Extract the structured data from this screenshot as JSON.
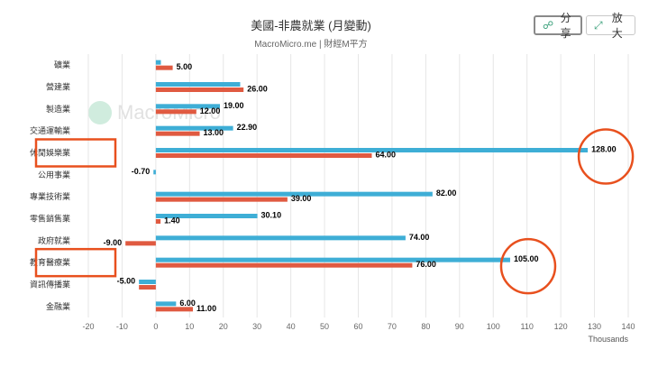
{
  "header": {
    "title": "美國-非農就業 (月變動)",
    "subtitle": "MacroMicro.me | 財經M平方"
  },
  "toolbar": {
    "share_label": "分享",
    "share_icon": "share-icon",
    "zoom_label": "放大",
    "zoom_icon": "expand-icon"
  },
  "watermark": {
    "text": "MacroMicro"
  },
  "chart_data": {
    "type": "bar",
    "orientation": "horizontal",
    "categories": [
      "礦業",
      "營建業",
      "製造業",
      "交通運輸業",
      "休閒娛樂業",
      "公用事業",
      "專業技術業",
      "零售銷售業",
      "政府就業",
      "教育醫療業",
      "資訊傳播業",
      "金融業"
    ],
    "series": [
      {
        "color": "#3eaed6",
        "values": [
          1.5,
          25,
          19.0,
          22.9,
          128.0,
          -0.7,
          82.0,
          30.1,
          74.0,
          105.0,
          -5.0,
          6.0
        ]
      },
      {
        "color": "#e05a41",
        "values": [
          5.0,
          26.0,
          12.0,
          13.0,
          64.0,
          null,
          39.0,
          1.4,
          -9.0,
          76.0,
          -5.0,
          11.0
        ]
      }
    ],
    "data_labels": [
      [
        "",
        "",
        "19.00",
        "22.90",
        "128.00",
        "-0.70",
        "82.00",
        "30.10",
        "74.00",
        "105.00",
        "-5.00",
        "6.00"
      ],
      [
        "5.00",
        "26.00",
        "12.00",
        "13.00",
        "64.00",
        "",
        "39.00",
        "1.40",
        "-9.00",
        "76.00",
        "",
        "11.00"
      ]
    ],
    "xlim": [
      -20,
      140
    ],
    "xticks": [
      -20,
      -10,
      0,
      10,
      20,
      30,
      40,
      50,
      60,
      70,
      80,
      90,
      100,
      110,
      120,
      130,
      140
    ],
    "xlabel": "Thousands",
    "grid": true,
    "highlight_boxes": [
      "休閒娛樂業",
      "教育醫療業"
    ],
    "highlight_circles": [
      "128.00",
      "105.00"
    ],
    "highlight_color": "#e8501e"
  }
}
